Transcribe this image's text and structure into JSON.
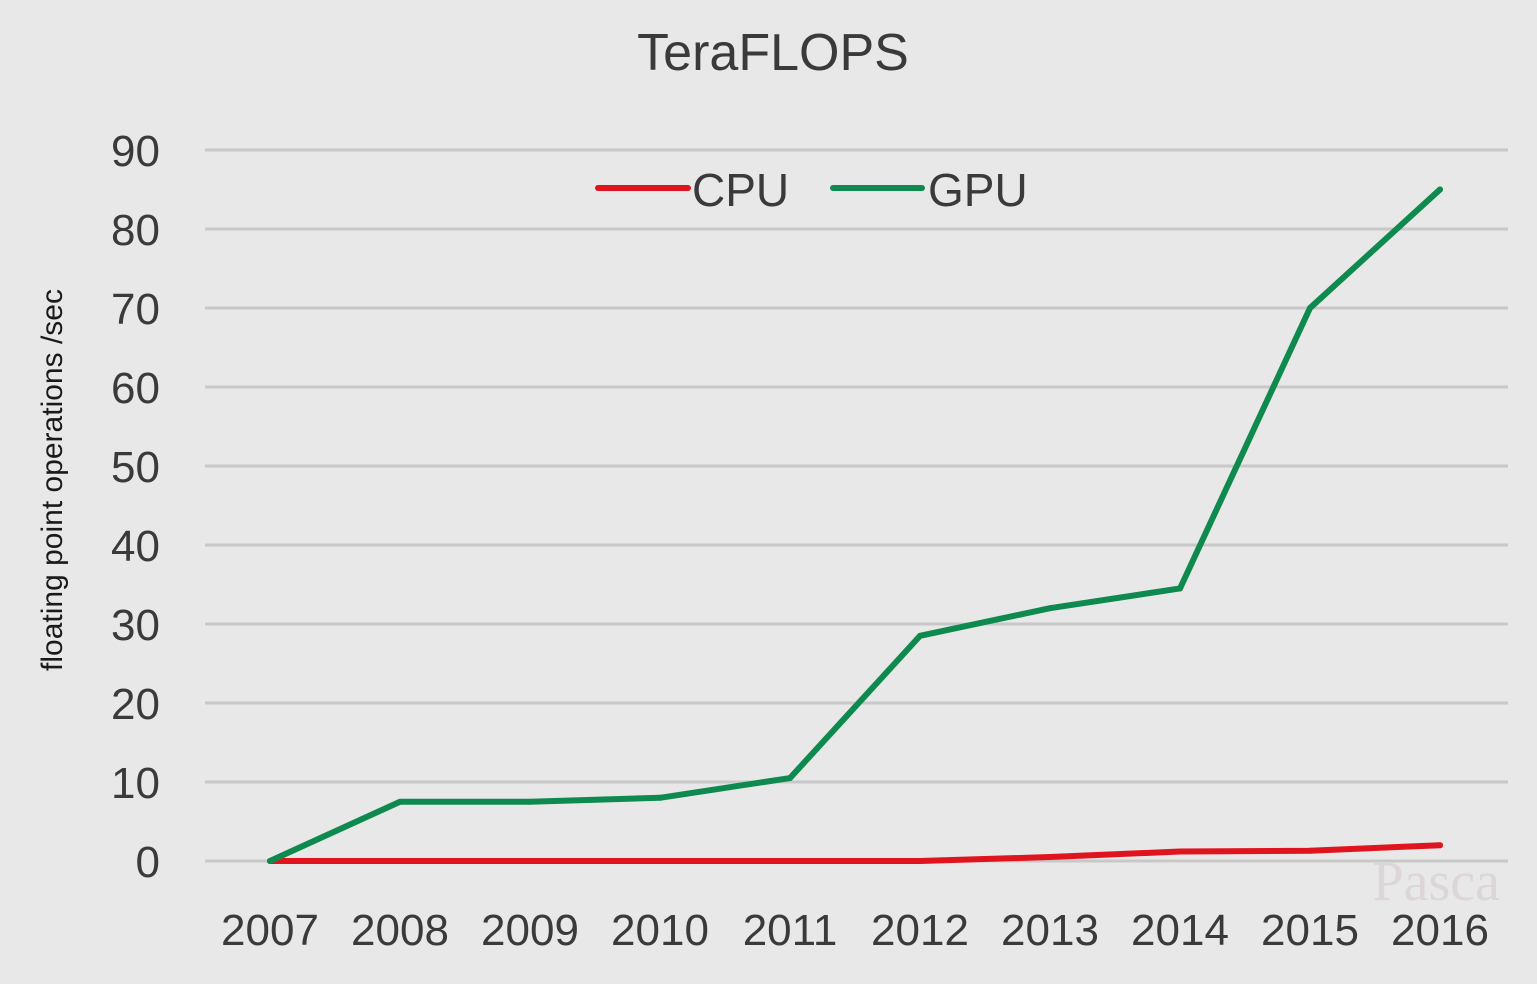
{
  "chart_data": {
    "type": "line",
    "title": "TeraFLOPS",
    "xlabel": "",
    "ylabel": "floating point operations /sec",
    "categories": [
      "2007",
      "2008",
      "2009",
      "2010",
      "2011",
      "2012",
      "2013",
      "2014",
      "2015",
      "2016"
    ],
    "ylim": [
      0,
      90
    ],
    "yticks": [
      0,
      10,
      20,
      30,
      40,
      50,
      60,
      70,
      80,
      90
    ],
    "grid": true,
    "legend_position": "top-center",
    "series": [
      {
        "name": "CPU",
        "color": "#e0141e",
        "values": [
          0,
          0,
          0,
          0,
          0,
          0,
          0.5,
          1.2,
          1.3,
          2.0
        ]
      },
      {
        "name": "GPU",
        "color": "#0e8a4e",
        "values": [
          0,
          7.5,
          7.5,
          8.0,
          10.5,
          28.5,
          32,
          34.5,
          70,
          85
        ]
      }
    ]
  },
  "watermark": "Pasca",
  "colors": {
    "background": "#e8e8e8",
    "gridline": "#c8c8c8",
    "text": "#3a3a3a"
  }
}
